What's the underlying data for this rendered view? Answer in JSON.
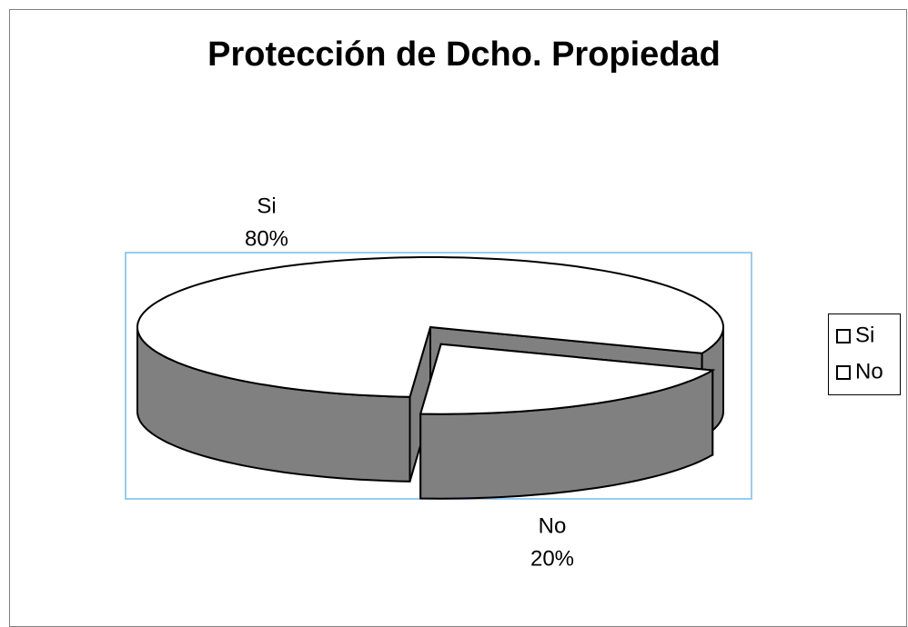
{
  "chart_data": {
    "type": "pie3d",
    "title": "Protección de Dcho. Propiedad",
    "categories": [
      "Si",
      "No"
    ],
    "values": [
      80,
      20
    ],
    "value_labels": [
      "80%",
      "20%"
    ],
    "colors": [
      "#ffffff",
      "#ffffff"
    ],
    "side_color": "#808080",
    "legend": "right",
    "exploded": [
      false,
      true
    ]
  }
}
